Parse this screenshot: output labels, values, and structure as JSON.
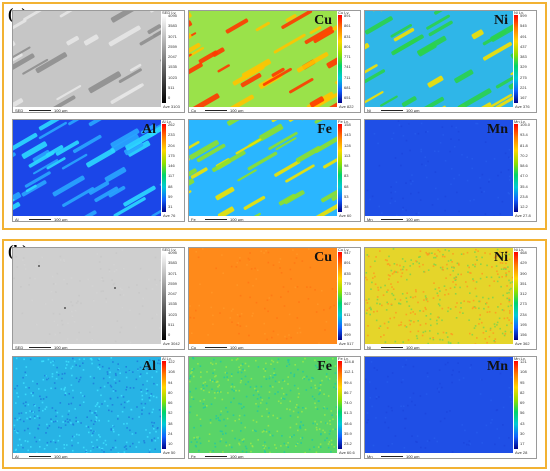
{
  "figure": {
    "panels": [
      {
        "label": "(a)",
        "tiles": [
          {
            "signal": "SED",
            "element": "",
            "header": "SED Lv.",
            "foot_name": "SED",
            "ticks": [
              "4095",
              "3583",
              "3071",
              "2559",
              "2047",
              "1535",
              "1023",
              "511",
              "0"
            ],
            "ave": "Ave 3103",
            "cmap": "gray",
            "texture": "dendrite-gray"
          },
          {
            "signal": "Cu",
            "element": "Cu",
            "header": "Cu Lv.",
            "foot_name": "Cu",
            "ticks": [
              "891",
              "861",
              "831",
              "801",
              "771",
              "741",
              "711",
              "681",
              "651"
            ],
            "ave": "Ave 822",
            "cmap": "color",
            "texture": "dendrite-hot"
          },
          {
            "signal": "Ni",
            "element": "Ni",
            "header": "Ni Lv.",
            "foot_name": "Ni",
            "ticks": [
              "599",
              "545",
              "491",
              "437",
              "383",
              "329",
              "275",
              "221",
              "167"
            ],
            "ave": "Ave 376",
            "cmap": "color",
            "texture": "dendrite-mixed"
          },
          {
            "signal": "Al",
            "element": "Al",
            "header": "Al Lv.",
            "foot_name": "Al",
            "ticks": [
              "262",
              "233",
              "204",
              "175",
              "146",
              "117",
              "88",
              "59",
              "31"
            ],
            "ave": "Ave 76",
            "cmap": "color",
            "texture": "dendrite-cool"
          },
          {
            "signal": "Fe",
            "element": "Fe",
            "header": "Fe Lv.",
            "foot_name": "Fe",
            "ticks": [
              "158",
              "143",
              "128",
              "113",
              "98",
              "83",
              "68",
              "53",
              "38"
            ],
            "ave": "Ave 60",
            "cmap": "color",
            "texture": "dendrite-green"
          },
          {
            "signal": "Mn",
            "element": "Mn",
            "header": "Mn Lv.",
            "foot_name": "Mn",
            "ticks": [
              "105.0",
              "93.4",
              "81.8",
              "70.2",
              "58.6",
              "47.0",
              "35.4",
              "23.8",
              "12.2"
            ],
            "ave": "Ave 27.8",
            "cmap": "color",
            "texture": "flat-blue"
          }
        ]
      },
      {
        "label": "(b)",
        "tiles": [
          {
            "signal": "SED",
            "element": "",
            "header": "SED Lv.",
            "foot_name": "SED",
            "ticks": [
              "4095",
              "3583",
              "3071",
              "2559",
              "2047",
              "1535",
              "1023",
              "511",
              "0"
            ],
            "ave": "Ave 3042",
            "cmap": "gray",
            "texture": "smooth-gray"
          },
          {
            "signal": "Cu",
            "element": "Cu",
            "header": "Cu Lv.",
            "foot_name": "Cu",
            "ticks": [
              "947",
              "891",
              "835",
              "779",
              "723",
              "667",
              "611",
              "555",
              "499"
            ],
            "ave": "Ave 517",
            "cmap": "color",
            "texture": "uniform-orange"
          },
          {
            "signal": "Ni",
            "element": "Ni",
            "header": "Ni Lv.",
            "foot_name": "Ni",
            "ticks": [
              "468",
              "429",
              "390",
              "351",
              "312",
              "273",
              "234",
              "195",
              "156"
            ],
            "ave": "Ave 362",
            "cmap": "color",
            "texture": "noisy-yellow"
          },
          {
            "signal": "Al",
            "element": "Al",
            "header": "Al Lv.",
            "foot_name": "Al",
            "ticks": [
              "122",
              "108",
              "94",
              "80",
              "66",
              "52",
              "38",
              "24",
              "10"
            ],
            "ave": "Ave 50",
            "cmap": "color",
            "texture": "noisy-cyan"
          },
          {
            "signal": "Fe",
            "element": "Fe",
            "header": "Fe Lv.",
            "foot_name": "Fe",
            "ticks": [
              "124.8",
              "112.1",
              "99.4",
              "86.7",
              "74.0",
              "61.3",
              "48.6",
              "35.9",
              "23.2"
            ],
            "ave": "Ave 60.6",
            "cmap": "color",
            "texture": "noisy-green"
          },
          {
            "signal": "Mn",
            "element": "Mn",
            "header": "Mn Lv.",
            "foot_name": "Mn",
            "ticks": [
              "121",
              "108",
              "95",
              "82",
              "69",
              "56",
              "43",
              "30",
              "17"
            ],
            "ave": "Ave 28",
            "cmap": "color",
            "texture": "flat-blue"
          }
        ]
      }
    ],
    "scale_bar_label": "100 μm",
    "colors": {
      "frame": "#f2b233",
      "element_label": "#111111"
    }
  }
}
